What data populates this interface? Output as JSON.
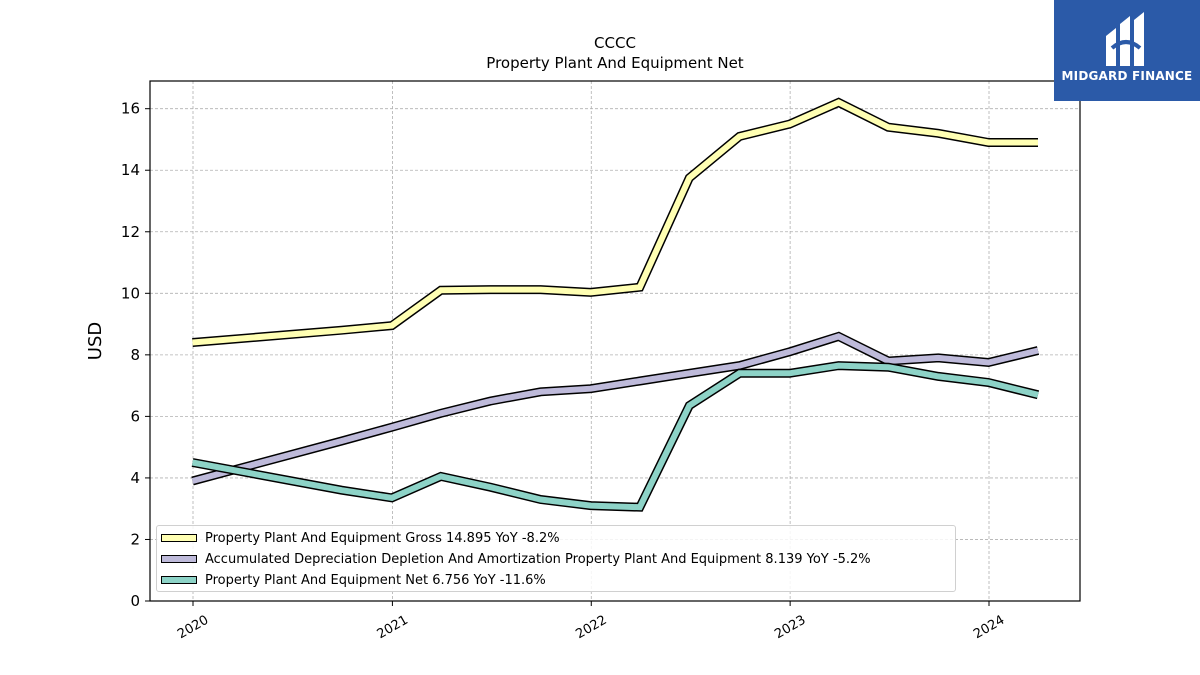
{
  "chart_data": {
    "type": "line",
    "title": "CCCC",
    "subtitle": "Property Plant And Equipment Net",
    "ylabel": "USD",
    "xlabel": "",
    "ylim": [
      0,
      16.9
    ],
    "yticks": [
      0,
      2,
      4,
      6,
      8,
      10,
      12,
      14,
      16
    ],
    "xticks": [
      "2020",
      "2021",
      "2022",
      "2023",
      "2024"
    ],
    "grid": true,
    "legend_position": "bottom-left",
    "x": [
      "2019-12-31",
      "2020-09-30",
      "2020-12-31",
      "2021-03-31",
      "2021-06-30",
      "2021-09-30",
      "2021-12-31",
      "2022-03-31",
      "2022-06-30",
      "2022-09-30",
      "2022-12-31",
      "2023-03-31",
      "2023-06-30",
      "2023-09-30",
      "2023-12-31",
      "2024-03-31"
    ],
    "series": [
      {
        "name": "Property Plant And Equipment Gross",
        "color": "#ffffb3",
        "legend_label": "Property Plant And Equipment Gross  14.895 YoY -8.2%",
        "values": [
          8.4,
          8.8,
          8.95,
          10.1,
          10.12,
          10.12,
          10.03,
          10.2,
          13.75,
          15.1,
          15.5,
          16.2,
          15.4,
          15.2,
          14.9,
          14.9
        ]
      },
      {
        "name": "Accumulated Depreciation Depletion And Amortization Property Plant And Equipment",
        "color": "#bebada",
        "legend_label": "Accumulated Depreciation Depletion And Amortization Property Plant And Equipment  8.139 YoY -5.2%",
        "values": [
          3.9,
          5.2,
          5.65,
          6.1,
          6.5,
          6.8,
          6.9,
          7.15,
          7.4,
          7.65,
          8.1,
          8.6,
          7.8,
          7.9,
          7.75,
          8.14
        ]
      },
      {
        "name": "Property Plant And Equipment Net",
        "color": "#8dd3c7",
        "legend_label": "Property Plant And Equipment Net  6.756 YoY -11.6%",
        "values": [
          4.5,
          3.6,
          3.35,
          4.05,
          3.7,
          3.3,
          3.1,
          3.05,
          6.35,
          7.4,
          7.4,
          7.65,
          7.6,
          7.3,
          7.1,
          6.7
        ]
      }
    ]
  },
  "logo": {
    "text": "MIDGARD FINANCE",
    "color": "#2b5aa8"
  }
}
